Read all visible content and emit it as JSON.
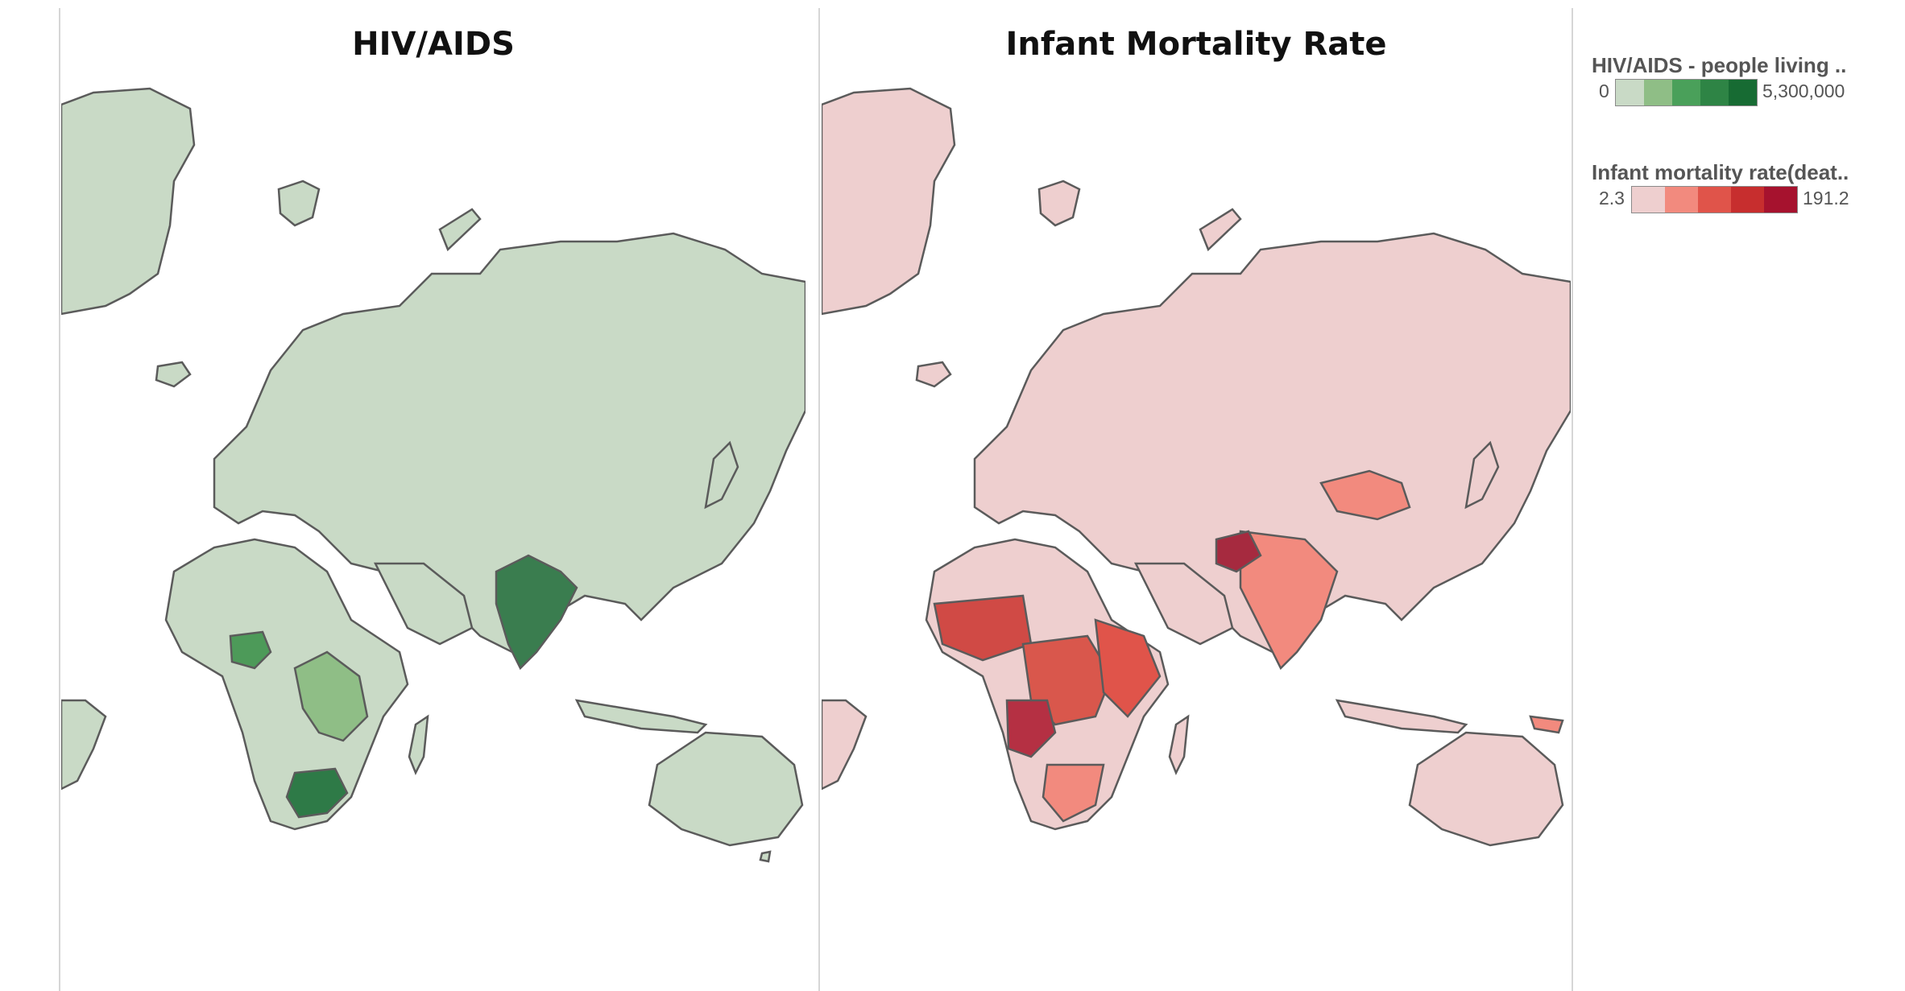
{
  "panels": [
    {
      "title": "HIV/AIDS",
      "base_color": "#c9dac6",
      "stroke": "#5b5b5b"
    },
    {
      "title": "Infant Mortality Rate",
      "base_color": "#eecfcf",
      "stroke": "#5b5b5b"
    }
  ],
  "legends": [
    {
      "title": "HIV/AIDS - people living ..",
      "min": "0",
      "max": "5,300,000",
      "colors": [
        "#c9dac6",
        "#8fbe86",
        "#4aa05a",
        "#2e8445",
        "#176b33"
      ]
    },
    {
      "title": "Infant mortality rate(deat..",
      "min": "2.3",
      "max": "191.2",
      "colors": [
        "#eecfcf",
        "#f28a7e",
        "#e0544a",
        "#c72e2e",
        "#a6122e"
      ]
    }
  ],
  "hiv_highlights": [
    {
      "region": "India",
      "color": "#3a7d4f"
    },
    {
      "region": "South Africa",
      "color": "#2e7a47"
    },
    {
      "region": "Nigeria",
      "color": "#4d9a59"
    },
    {
      "region": "East Africa",
      "color": "#8fbe86"
    }
  ],
  "imr_highlights": [
    {
      "region": "Afghanistan",
      "color": "#a62a3f"
    },
    {
      "region": "Angola",
      "color": "#b53043"
    },
    {
      "region": "West Africa",
      "color": "#d04a45"
    },
    {
      "region": "Central Africa",
      "color": "#d9574c"
    },
    {
      "region": "South Asia",
      "color": "#f28a7e"
    },
    {
      "region": "Mongolia",
      "color": "#f28a7e"
    }
  ]
}
